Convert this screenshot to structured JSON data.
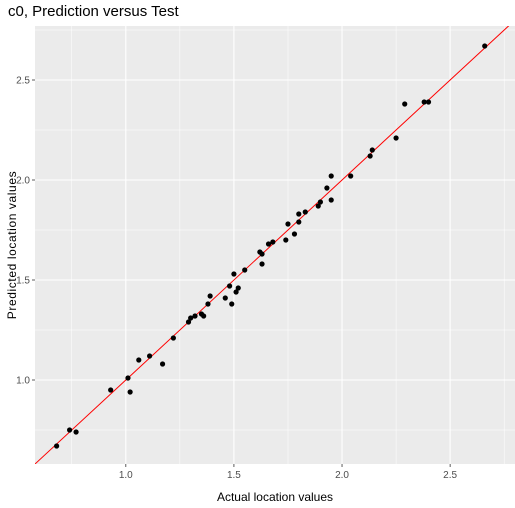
{
  "chart_data": {
    "type": "scatter",
    "title": "c0, Prediction versus Test",
    "xlabel": "Actual location values",
    "ylabel": "Predicted location values",
    "xlim": [
      0.58,
      2.8
    ],
    "ylim": [
      0.58,
      2.77
    ],
    "x_ticks": [
      1.0,
      1.5,
      2.0,
      2.5
    ],
    "y_ticks": [
      1.0,
      1.5,
      2.0,
      2.5
    ],
    "x_tick_labels": [
      "1.0",
      "1.5",
      "2.0",
      "2.5"
    ],
    "y_tick_labels": [
      "1.0",
      "1.5",
      "2.0",
      "2.5"
    ],
    "grid": true,
    "panel_background": "#ebebeb",
    "grid_color": "#ffffff",
    "point_color": "#000000",
    "fit_line": {
      "color": "#ff0000",
      "x": [
        0.58,
        2.8
      ],
      "y": [
        0.58,
        2.8
      ]
    },
    "points": [
      {
        "x": 0.68,
        "y": 0.67
      },
      {
        "x": 0.74,
        "y": 0.75
      },
      {
        "x": 0.77,
        "y": 0.74
      },
      {
        "x": 0.93,
        "y": 0.95
      },
      {
        "x": 1.01,
        "y": 1.01
      },
      {
        "x": 1.02,
        "y": 0.94
      },
      {
        "x": 1.06,
        "y": 1.1
      },
      {
        "x": 1.11,
        "y": 1.12
      },
      {
        "x": 1.17,
        "y": 1.08
      },
      {
        "x": 1.22,
        "y": 1.21
      },
      {
        "x": 1.29,
        "y": 1.29
      },
      {
        "x": 1.3,
        "y": 1.31
      },
      {
        "x": 1.32,
        "y": 1.32
      },
      {
        "x": 1.35,
        "y": 1.33
      },
      {
        "x": 1.36,
        "y": 1.32
      },
      {
        "x": 1.38,
        "y": 1.38
      },
      {
        "x": 1.39,
        "y": 1.42
      },
      {
        "x": 1.46,
        "y": 1.41
      },
      {
        "x": 1.48,
        "y": 1.47
      },
      {
        "x": 1.49,
        "y": 1.38
      },
      {
        "x": 1.5,
        "y": 1.53
      },
      {
        "x": 1.51,
        "y": 1.44
      },
      {
        "x": 1.52,
        "y": 1.46
      },
      {
        "x": 1.55,
        "y": 1.55
      },
      {
        "x": 1.62,
        "y": 1.64
      },
      {
        "x": 1.63,
        "y": 1.58
      },
      {
        "x": 1.63,
        "y": 1.63
      },
      {
        "x": 1.66,
        "y": 1.68
      },
      {
        "x": 1.68,
        "y": 1.69
      },
      {
        "x": 1.74,
        "y": 1.7
      },
      {
        "x": 1.75,
        "y": 1.78
      },
      {
        "x": 1.78,
        "y": 1.73
      },
      {
        "x": 1.8,
        "y": 1.83
      },
      {
        "x": 1.8,
        "y": 1.79
      },
      {
        "x": 1.83,
        "y": 1.84
      },
      {
        "x": 1.89,
        "y": 1.87
      },
      {
        "x": 1.9,
        "y": 1.89
      },
      {
        "x": 1.93,
        "y": 1.96
      },
      {
        "x": 1.95,
        "y": 2.02
      },
      {
        "x": 1.95,
        "y": 1.9
      },
      {
        "x": 2.04,
        "y": 2.02
      },
      {
        "x": 2.13,
        "y": 2.12
      },
      {
        "x": 2.14,
        "y": 2.15
      },
      {
        "x": 2.25,
        "y": 2.21
      },
      {
        "x": 2.29,
        "y": 2.38
      },
      {
        "x": 2.38,
        "y": 2.39
      },
      {
        "x": 2.4,
        "y": 2.39
      },
      {
        "x": 2.66,
        "y": 2.67
      }
    ]
  }
}
